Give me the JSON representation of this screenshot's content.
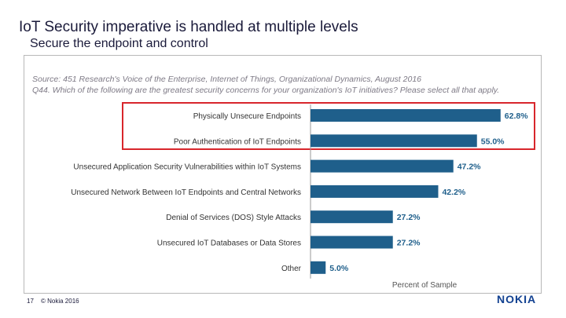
{
  "slide": {
    "title": "IoT Security imperative is handled at multiple levels",
    "subtitle": "Secure the endpoint and control",
    "page_number": "17",
    "copyright": "© Nokia 2016",
    "logo_text": "NOKIA"
  },
  "chart_data": {
    "type": "bar",
    "orientation": "horizontal",
    "source_line": "Source: 451 Research's Voice of the Enterprise, Internet of Things, Organizational Dynamics, August 2016",
    "question_line": "Q44. Which of the following are the greatest security concerns for your organization's IoT initiatives? Please select all that apply.",
    "categories": [
      "Physically Unsecure Endpoints",
      "Poor Authentication of IoT Endpoints",
      "Unsecured Application Security Vulnerabilities within IoT Systems",
      "Unsecured Network Between IoT Endpoints and Central Networks",
      "Denial of Services (DOS) Style Attacks",
      "Unsecured IoT Databases or Data Stores",
      "Other"
    ],
    "values": [
      62.8,
      55.0,
      47.2,
      42.2,
      27.2,
      27.2,
      5.0
    ],
    "value_labels": [
      "62.8%",
      "55.0%",
      "47.2%",
      "42.2%",
      "27.2%",
      "27.2%",
      "5.0%"
    ],
    "xlabel": "Percent of Sample",
    "xlim": [
      0,
      70
    ],
    "highlighted_categories": [
      0,
      1
    ],
    "bar_color": "#1f5f8b",
    "highlight_color": "#d8262c"
  }
}
